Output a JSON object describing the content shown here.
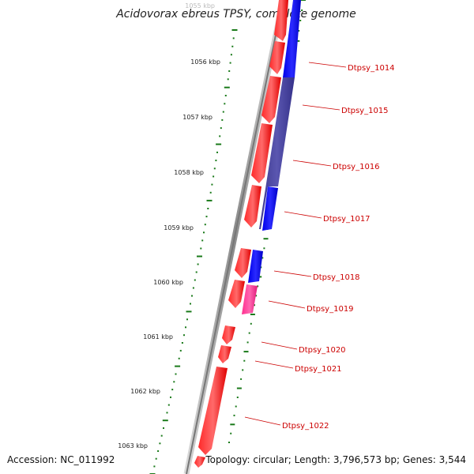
{
  "title": "Acidovorax ebreus TPSY, complete genome",
  "footer": {
    "accession": "Accession: NC_011992",
    "summary": "Topology: circular; Length: 3,796,573 bp; Genes: 3,544"
  },
  "colors": {
    "forward_cds": "#ff0000",
    "reverse_cds": "#0000ff",
    "overlap": "#4d4aa0",
    "pink_cds": "#ff3399",
    "backbone": "#888888",
    "dotted_track": "#1a7a1a",
    "gene_label": "#cc0000"
  },
  "scale": {
    "partial_label": "1055 kbp",
    "labels": [
      "1056 kbp",
      "1057 kbp",
      "1058 kbp",
      "1059 kbp",
      "1060 kbp",
      "1061 kbp",
      "1062 kbp",
      "1063 kbp"
    ]
  },
  "genes": [
    {
      "name": "Dtpsy_1014"
    },
    {
      "name": "Dtpsy_1015"
    },
    {
      "name": "Dtpsy_1016"
    },
    {
      "name": "Dtpsy_1017"
    },
    {
      "name": "Dtpsy_1018"
    },
    {
      "name": "Dtpsy_1019"
    },
    {
      "name": "Dtpsy_1020"
    },
    {
      "name": "Dtpsy_1021"
    },
    {
      "name": "Dtpsy_1022"
    }
  ]
}
